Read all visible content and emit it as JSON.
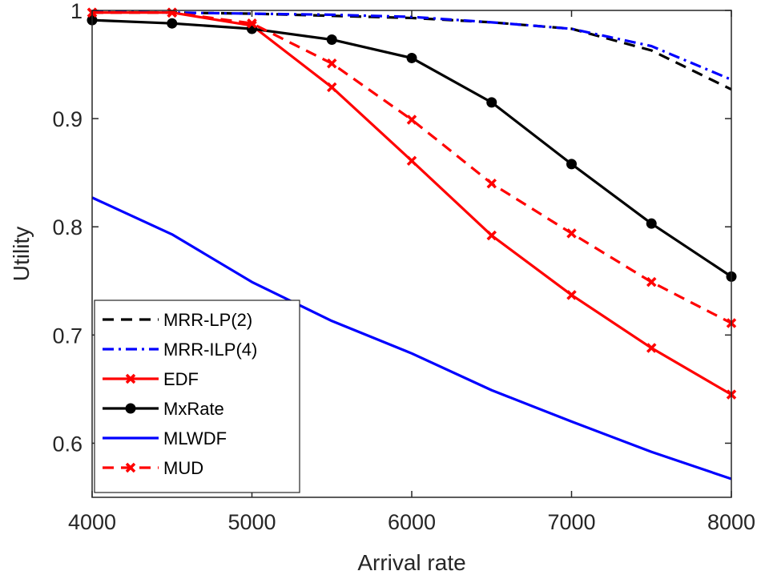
{
  "chart_data": {
    "type": "line",
    "title": "",
    "xlabel": "Arrival rate",
    "ylabel": "Utility",
    "xlim": [
      4000,
      8000
    ],
    "ylim": [
      0.55,
      1.0
    ],
    "xticks": [
      4000,
      5000,
      6000,
      7000,
      8000
    ],
    "xtick_labels": [
      "4000",
      "5000",
      "6000",
      "7000",
      "8000"
    ],
    "yticks": [
      0.6,
      0.7,
      0.8,
      0.9,
      1.0
    ],
    "ytick_labels": [
      "0.6",
      "0.7",
      "0.8",
      "0.9",
      "1"
    ],
    "grid": false,
    "legend_position": "bottom-left",
    "x": [
      4000,
      4500,
      5000,
      5500,
      6000,
      6500,
      7000,
      7500,
      8000
    ],
    "series": [
      {
        "name": "MRR-LP(2)",
        "color": "#000000",
        "line_style": "dashed",
        "marker": "none",
        "values": [
          0.998,
          0.998,
          0.997,
          0.995,
          0.993,
          0.989,
          0.983,
          0.963,
          0.927
        ]
      },
      {
        "name": "MRR-ILP(4)",
        "color": "#0000ff",
        "line_style": "dash-dot",
        "marker": "none",
        "values": [
          0.999,
          0.998,
          0.997,
          0.996,
          0.994,
          0.989,
          0.983,
          0.967,
          0.936
        ]
      },
      {
        "name": "EDF",
        "color": "#ff0000",
        "line_style": "solid",
        "marker": "x",
        "values": [
          0.998,
          0.998,
          0.986,
          0.929,
          0.861,
          0.792,
          0.737,
          0.688,
          0.645
        ]
      },
      {
        "name": "MxRate",
        "color": "#000000",
        "line_style": "solid",
        "marker": "circle",
        "values": [
          0.991,
          0.988,
          0.983,
          0.973,
          0.956,
          0.915,
          0.858,
          0.803,
          0.754
        ]
      },
      {
        "name": "MLWDF",
        "color": "#0000ff",
        "line_style": "solid",
        "marker": "none",
        "values": [
          0.827,
          0.793,
          0.749,
          0.713,
          0.683,
          0.649,
          0.62,
          0.592,
          0.567
        ]
      },
      {
        "name": "MUD",
        "color": "#ff0000",
        "line_style": "dashed",
        "marker": "x",
        "values": [
          0.998,
          0.998,
          0.988,
          0.951,
          0.899,
          0.84,
          0.794,
          0.749,
          0.711
        ]
      }
    ]
  }
}
